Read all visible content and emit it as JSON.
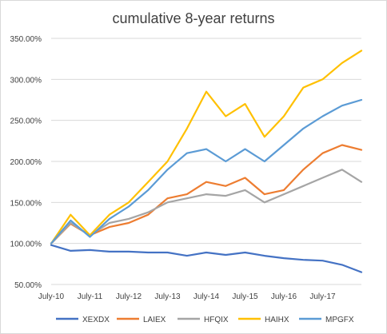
{
  "chart_data": {
    "type": "line",
    "title": "cumulative 8-year returns",
    "xlabel": "",
    "ylabel": "",
    "x_tick_labels": [
      "July-10",
      "July-11",
      "July-12",
      "July-13",
      "July-14",
      "July-15",
      "July-16",
      "July-17"
    ],
    "y_tick_labels": [
      "50.00%",
      "100.00%",
      "150.00%",
      "200.00%",
      "250.00%",
      "300.00%",
      "350.00%"
    ],
    "ylim": [
      50,
      350
    ],
    "y_unit": "%",
    "grid": "horizontal",
    "legend_position": "bottom",
    "x": [
      "2010-07",
      "2011-01",
      "2011-07",
      "2012-01",
      "2012-07",
      "2013-01",
      "2013-07",
      "2014-01",
      "2014-07",
      "2015-01",
      "2015-07",
      "2016-01",
      "2016-07",
      "2017-01",
      "2017-07",
      "2018-01",
      "2018-06"
    ],
    "series": [
      {
        "name": "XEXDX",
        "color": "#4472C4",
        "values": [
          98,
          91,
          92,
          90,
          90,
          89,
          89,
          85,
          89,
          86,
          89,
          85,
          82,
          80,
          79,
          74,
          65
        ]
      },
      {
        "name": "LAIEX",
        "color": "#ED7D31",
        "values": [
          100,
          124,
          110,
          120,
          125,
          135,
          155,
          160,
          175,
          170,
          180,
          160,
          165,
          190,
          210,
          220,
          214
        ]
      },
      {
        "name": "HFQIX",
        "color": "#A5A5A5",
        "values": [
          100,
          125,
          110,
          125,
          130,
          138,
          150,
          155,
          160,
          158,
          165,
          150,
          160,
          170,
          180,
          190,
          175
        ]
      },
      {
        "name": "HAIHX",
        "color": "#FFC000",
        "values": [
          100,
          135,
          110,
          135,
          150,
          175,
          200,
          240,
          285,
          255,
          270,
          230,
          255,
          290,
          300,
          320,
          335
        ]
      },
      {
        "name": "MPGFX",
        "color": "#5B9BD5",
        "values": [
          100,
          128,
          108,
          130,
          145,
          165,
          190,
          210,
          215,
          200,
          215,
          200,
          220,
          240,
          255,
          268,
          275
        ]
      }
    ]
  }
}
